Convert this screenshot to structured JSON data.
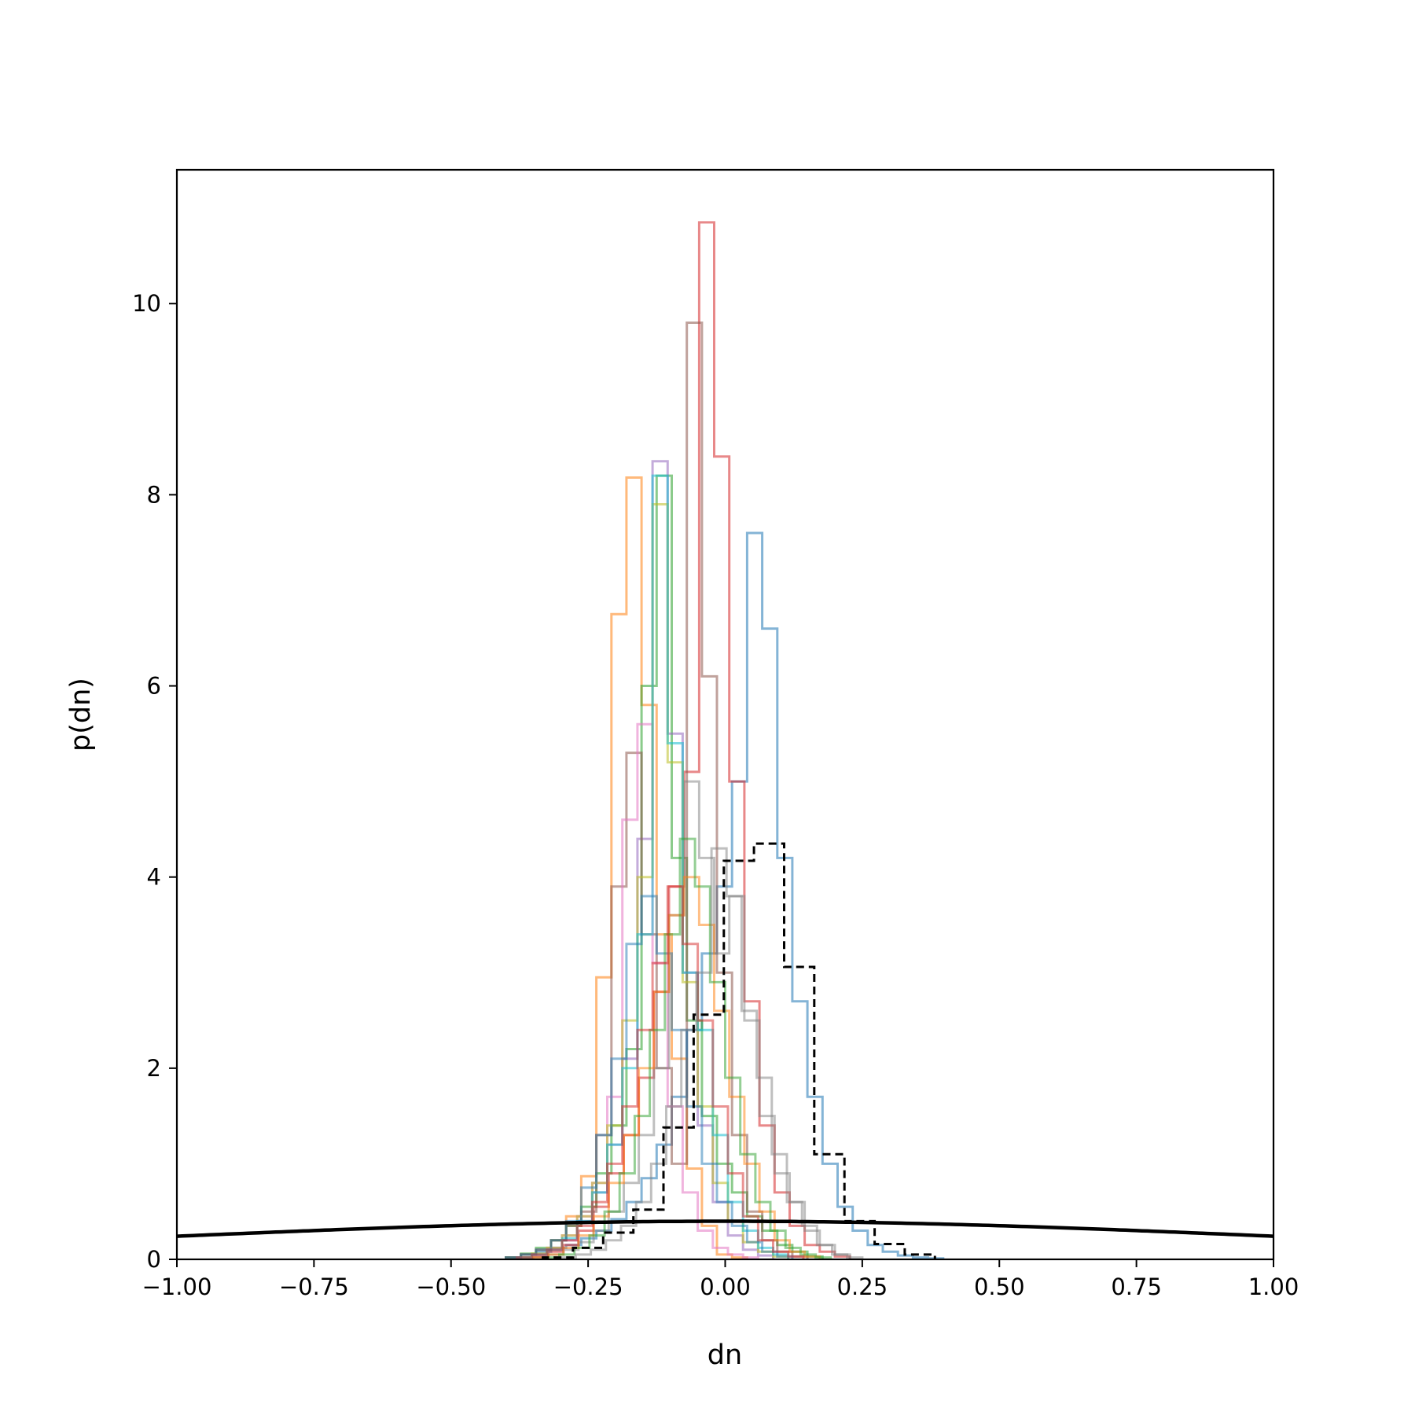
{
  "chart_data": {
    "type": "histogram",
    "xlabel": "dn",
    "ylabel": "p(dn)",
    "xlim": [
      -1.0,
      1.0
    ],
    "ylim": [
      0,
      11.4
    ],
    "grid": false,
    "legend": "none",
    "x_ticks": [
      "−1.00",
      "−0.75",
      "−0.50",
      "−0.25",
      "0.00",
      "0.25",
      "0.50",
      "0.75",
      "1.00"
    ],
    "x_tick_values": [
      -1.0,
      -0.75,
      -0.5,
      -0.25,
      0.0,
      0.25,
      0.5,
      0.75,
      1.0
    ],
    "y_ticks": [
      "0",
      "2",
      "4",
      "6",
      "8",
      "10"
    ],
    "y_tick_values": [
      0,
      2,
      4,
      6,
      8,
      10
    ],
    "bin_width": 0.0275,
    "series": [
      {
        "color": "#1f77b4",
        "opacity": 0.55,
        "bin_start": -0.4,
        "values": [
          0.02,
          0.05,
          0.08,
          0.12,
          0.15,
          0.22,
          0.3,
          0.42,
          0.6,
          0.85,
          1.2,
          1.7,
          2.4,
          3.2,
          3.9,
          5.0,
          7.6,
          6.6,
          4.2,
          2.7,
          1.7,
          1.0,
          0.55,
          0.3,
          0.15,
          0.08,
          0.04,
          0.02,
          0.01
        ]
      },
      {
        "color": "#ff7f0e",
        "opacity": 0.55,
        "bin_start": -0.4,
        "values": [
          0.02,
          0.05,
          0.1,
          0.2,
          0.45,
          0.87,
          2.95,
          6.75,
          8.18,
          5.8,
          3.4,
          2.1,
          0.95,
          0.35,
          0.05,
          0.02
        ]
      },
      {
        "color": "#2ca02c",
        "opacity": 0.55,
        "bin_start": -0.4,
        "values": [
          0.02,
          0.06,
          0.12,
          0.2,
          0.35,
          0.55,
          0.9,
          1.4,
          2.2,
          6.0,
          8.2,
          4.2,
          2.5,
          1.5,
          1.0,
          0.7,
          0.45,
          0.3,
          0.15,
          0.08,
          0.03
        ]
      },
      {
        "color": "#d62728",
        "opacity": 0.55,
        "bin_start": -0.35,
        "values": [
          0.03,
          0.08,
          0.15,
          0.3,
          0.55,
          0.9,
          1.3,
          1.9,
          2.8,
          3.9,
          5.1,
          10.85,
          8.4,
          5.0,
          2.7,
          1.4,
          0.7,
          0.35,
          0.15,
          0.08,
          0.03
        ]
      },
      {
        "color": "#9467bd",
        "opacity": 0.55,
        "bin_start": -0.38,
        "values": [
          0.02,
          0.05,
          0.1,
          0.2,
          0.4,
          0.7,
          1.2,
          2.1,
          4.4,
          8.35,
          5.5,
          3.0,
          1.4,
          0.6,
          0.25,
          0.1,
          0.04
        ]
      },
      {
        "color": "#8c564b",
        "opacity": 0.55,
        "bin_start": -0.4,
        "values": [
          0.02,
          0.05,
          0.1,
          0.2,
          0.35,
          0.5,
          1.3,
          3.9,
          5.3,
          3.4,
          2.0,
          1.0,
          9.8,
          6.1,
          3.0,
          1.3,
          0.5,
          0.2,
          0.08,
          0.03
        ]
      },
      {
        "color": "#e377c2",
        "opacity": 0.55,
        "bin_start": -0.38,
        "values": [
          0.02,
          0.05,
          0.12,
          0.25,
          0.45,
          0.8,
          1.7,
          4.6,
          5.6,
          3.1,
          1.6,
          0.7,
          0.3,
          0.12,
          0.05,
          0.02
        ]
      },
      {
        "color": "#7f7f7f",
        "opacity": 0.5,
        "bin_start": -0.35,
        "values": [
          0.02,
          0.05,
          0.1,
          0.18,
          0.3,
          0.5,
          0.8,
          1.3,
          2.0,
          3.6,
          5.0,
          4.2,
          3.2,
          3.8,
          2.5,
          1.5,
          0.9,
          0.6,
          0.3,
          0.15,
          0.05
        ]
      },
      {
        "color": "#bcbd22",
        "opacity": 0.55,
        "bin_start": -0.38,
        "values": [
          0.02,
          0.06,
          0.12,
          0.25,
          0.45,
          0.8,
          1.4,
          2.5,
          4.0,
          7.9,
          5.2,
          2.9,
          1.6,
          0.8,
          0.4,
          0.18,
          0.08,
          0.03
        ]
      },
      {
        "color": "#17becf",
        "opacity": 0.55,
        "bin_start": -0.38,
        "values": [
          0.02,
          0.05,
          0.1,
          0.22,
          0.4,
          0.7,
          1.2,
          2.0,
          3.4,
          8.2,
          5.4,
          3.0,
          2.4,
          1.3,
          0.6,
          0.3,
          0.12,
          0.05
        ]
      },
      {
        "color": "#1f77b4",
        "opacity": 0.5,
        "bin_start": -0.4,
        "values": [
          0.02,
          0.05,
          0.1,
          0.2,
          0.4,
          0.75,
          1.3,
          2.1,
          3.3,
          3.8,
          3.2,
          2.4,
          1.6,
          1.0,
          0.6,
          0.35,
          0.18,
          0.08,
          0.03
        ]
      },
      {
        "color": "#ff7f0e",
        "opacity": 0.5,
        "bin_start": -0.35,
        "values": [
          0.02,
          0.05,
          0.12,
          0.25,
          0.45,
          0.8,
          1.3,
          2.0,
          2.8,
          3.6,
          4.0,
          3.5,
          2.6,
          1.7,
          1.0,
          0.5,
          0.2,
          0.08,
          0.03
        ]
      },
      {
        "color": "#2ca02c",
        "opacity": 0.5,
        "bin_start": -0.33,
        "values": [
          0.02,
          0.05,
          0.12,
          0.25,
          0.5,
          0.9,
          1.5,
          2.4,
          3.4,
          4.4,
          3.9,
          2.9,
          1.9,
          1.1,
          0.6,
          0.3,
          0.12,
          0.05,
          0.02
        ]
      },
      {
        "color": "#d62728",
        "opacity": 0.5,
        "bin_start": -0.38,
        "values": [
          0.02,
          0.05,
          0.1,
          0.2,
          0.35,
          0.6,
          1.0,
          1.6,
          2.4,
          3.1,
          3.9,
          3.3,
          2.5,
          1.6,
          0.9,
          0.45,
          0.2,
          0.08,
          0.03
        ]
      },
      {
        "color": "#7f7f7f",
        "opacity": 0.5,
        "bin_start": -0.3,
        "values": [
          0.02,
          0.05,
          0.1,
          0.2,
          0.35,
          0.6,
          1.0,
          1.6,
          2.4,
          3.0,
          4.3,
          3.8,
          2.6,
          1.9,
          1.1,
          0.6,
          0.35,
          0.15,
          0.05,
          0.02
        ]
      }
    ],
    "reference_histogram": {
      "color": "#000000",
      "style": "dashed",
      "bin_start": -0.3325,
      "bin_width": 0.055,
      "values": [
        0.02,
        0.12,
        0.28,
        0.52,
        1.38,
        2.56,
        4.17,
        4.35,
        3.06,
        1.1,
        0.4,
        0.16,
        0.05
      ]
    },
    "prior_curve": {
      "color": "#000000",
      "style": "solid",
      "distribution": "normal",
      "mean": 0.0,
      "sigma": 1.0
    }
  }
}
